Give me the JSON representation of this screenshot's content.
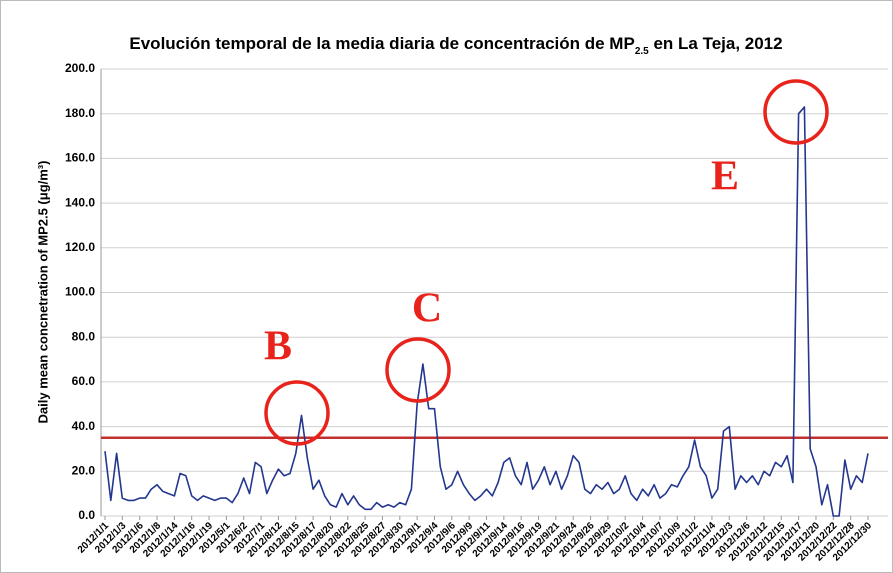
{
  "chart_data": {
    "type": "line",
    "title": "Evolución temporal de la media diaria de concentración de MP",
    "title_subscript": "2.5",
    "title_suffix": " en La Teja, 2012",
    "ylabel": "Daily mean concnetration of MP2.5 (μg/m³)",
    "ylim": [
      0,
      200
    ],
    "yticks": [
      {
        "value": 0,
        "label": "0.0"
      },
      {
        "value": 20,
        "label": "20.0"
      },
      {
        "value": 40,
        "label": "40.0"
      },
      {
        "value": 60,
        "label": "60.0"
      },
      {
        "value": 80,
        "label": "80.0"
      },
      {
        "value": 100,
        "label": "100.0"
      },
      {
        "value": 120,
        "label": "120.0"
      },
      {
        "value": 140,
        "label": "140.0"
      },
      {
        "value": 160,
        "label": "160.0"
      },
      {
        "value": 180,
        "label": "180.0"
      },
      {
        "value": 200,
        "label": "200.0"
      }
    ],
    "grid": true,
    "reference_line": {
      "value": 35,
      "color": "#c0302c"
    },
    "annotations": [
      "B",
      "C",
      "E"
    ],
    "categories": [
      "2012/1/1",
      null,
      null,
      "2012/1/3",
      null,
      null,
      "2012/1/6",
      null,
      null,
      "2012/1/8",
      null,
      null,
      "2012/1/14",
      null,
      null,
      "2012/1/16",
      null,
      null,
      "2012/1/19",
      null,
      null,
      "2012/5/1",
      null,
      null,
      "2012/6/2",
      null,
      null,
      "2012/7/1",
      null,
      null,
      "2012/8/12",
      null,
      null,
      "2012/8/15",
      null,
      null,
      "2012/8/17",
      null,
      null,
      "2012/8/20",
      null,
      null,
      "2012/8/22",
      null,
      null,
      "2012/8/25",
      null,
      null,
      "2012/8/27",
      null,
      null,
      "2012/8/30",
      null,
      null,
      "2012/9/1",
      null,
      null,
      "2012/9/4",
      null,
      null,
      "2012/9/6",
      null,
      null,
      "2012/9/9",
      null,
      null,
      "2012/9/11",
      null,
      null,
      "2012/9/14",
      null,
      null,
      "2012/9/16",
      null,
      null,
      "2012/9/19",
      null,
      null,
      "2012/9/21",
      null,
      null,
      "2012/9/24",
      null,
      null,
      "2012/9/26",
      null,
      null,
      "2012/9/29",
      null,
      null,
      "2012/10/2",
      null,
      null,
      "2012/10/4",
      null,
      null,
      "2012/10/7",
      null,
      null,
      "2012/10/9",
      null,
      null,
      "2012/11/2",
      null,
      null,
      "2012/11/4",
      null,
      null,
      "2012/12/3",
      null,
      null,
      "2012/12/6",
      null,
      null,
      "2012/12/12",
      null,
      null,
      "2012/12/15",
      null,
      null,
      "2012/12/17",
      null,
      null,
      "2012/12/20",
      null,
      null,
      "2012/12/22",
      null,
      null,
      "2012/12/28",
      null,
      null,
      "2012/12/30"
    ],
    "series": [
      {
        "name": "MP2.5",
        "color": "#24378f",
        "values": [
          29,
          7,
          28,
          8,
          7,
          7,
          8,
          8,
          12,
          14,
          11,
          10,
          9,
          19,
          18,
          9,
          7,
          9,
          8,
          7,
          8,
          8,
          6,
          10,
          17,
          10,
          24,
          22,
          10,
          16,
          21,
          18,
          19,
          28,
          45,
          26,
          12,
          16,
          9,
          5,
          4,
          10,
          5,
          9,
          5,
          3,
          3,
          6,
          4,
          5,
          4,
          6,
          5,
          12,
          50,
          68,
          48,
          48,
          22,
          12,
          14,
          20,
          14,
          10,
          7,
          9,
          12,
          9,
          15,
          24,
          26,
          18,
          14,
          24,
          12,
          16,
          22,
          14,
          20,
          12,
          18,
          27,
          24,
          12,
          10,
          14,
          12,
          15,
          10,
          12,
          18,
          10,
          7,
          12,
          9,
          14,
          8,
          10,
          14,
          13,
          18,
          22,
          34,
          22,
          18,
          8,
          12,
          38,
          40,
          12,
          18,
          15,
          18,
          14,
          20,
          18,
          24,
          22,
          27,
          15,
          180,
          183,
          30,
          22,
          5,
          14,
          0,
          0,
          25,
          12,
          18,
          15,
          28
        ]
      }
    ]
  }
}
